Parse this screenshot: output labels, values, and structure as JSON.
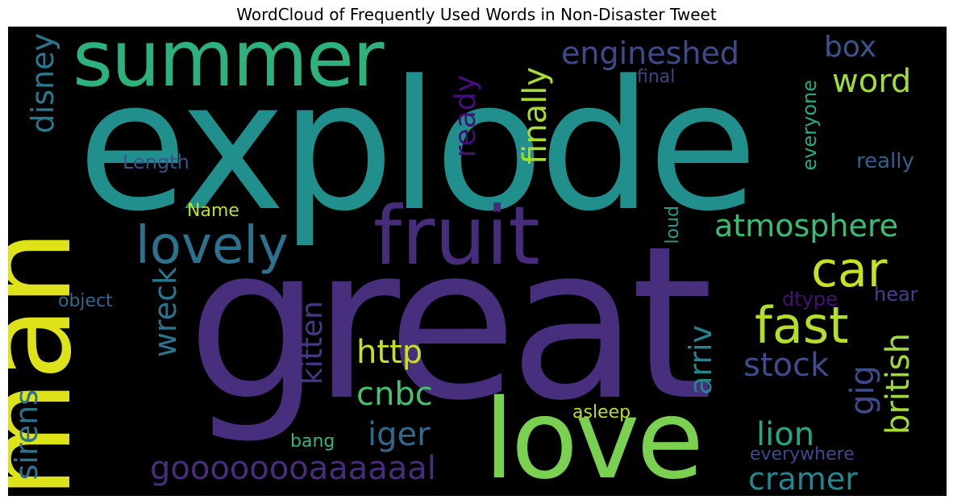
{
  "title": "WordCloud of Frequently Used Words in Non-Disaster Tweet",
  "words": {
    "explode": {
      "text": "explode",
      "color": "#21908d"
    },
    "great": {
      "text": "great",
      "color": "#472f7d"
    },
    "man": {
      "text": "man",
      "color": "#dde318"
    },
    "love": {
      "text": "love",
      "color": "#7ad151"
    },
    "summer": {
      "text": "summer",
      "color": "#2db27d"
    },
    "fruit": {
      "text": "fruit",
      "color": "#472c7a"
    },
    "lovely": {
      "text": "lovely",
      "color": "#2c728e"
    },
    "car": {
      "text": "car",
      "color": "#c8e020"
    },
    "fast": {
      "text": "fast",
      "color": "#b5de2b"
    },
    "atmosphere": {
      "text": "atmosphere",
      "color": "#3bbb75"
    },
    "engineshed": {
      "text": "engineshed",
      "color": "#3e4a89"
    },
    "box": {
      "text": "box",
      "color": "#3b528b"
    },
    "word": {
      "text": "word",
      "color": "#a2da37"
    },
    "disney": {
      "text": "disney",
      "color": "#2a788e"
    },
    "final": {
      "text": "final",
      "color": "#414487"
    },
    "ready": {
      "text": "ready",
      "color": "#440f76"
    },
    "finally": {
      "text": "finally",
      "color": "#a8db34"
    },
    "everyone": {
      "text": "everyone",
      "color": "#25ab82"
    },
    "really": {
      "text": "really",
      "color": "#355f8d"
    },
    "length": {
      "text": "Length",
      "color": "#3b528b"
    },
    "name": {
      "text": "Name",
      "color": "#bddf26"
    },
    "loud": {
      "text": "loud",
      "color": "#2a9a8b"
    },
    "object": {
      "text": "object",
      "color": "#31688e"
    },
    "wreck": {
      "text": "wreck",
      "color": "#2b758e"
    },
    "kitten": {
      "text": "kitten",
      "color": "#443a83"
    },
    "http": {
      "text": "http",
      "color": "#c5e021"
    },
    "cnbc": {
      "text": "cnbc",
      "color": "#48c16e"
    },
    "arriv": {
      "text": "arriv",
      "color": "#25858e"
    },
    "stock": {
      "text": "stock",
      "color": "#3e4c8a"
    },
    "gig": {
      "text": "gig",
      "color": "#3e4a89"
    },
    "british": {
      "text": "british",
      "color": "#a0da39"
    },
    "dtype": {
      "text": "dtype",
      "color": "#440f76"
    },
    "hear": {
      "text": "hear",
      "color": "#424186"
    },
    "sirens": {
      "text": "sirens",
      "color": "#2c738e"
    },
    "iger": {
      "text": "iger",
      "color": "#31688e"
    },
    "asleep": {
      "text": "asleep",
      "color": "#b8de29"
    },
    "bang": {
      "text": "bang",
      "color": "#35b779"
    },
    "lion": {
      "text": "lion",
      "color": "#22a884"
    },
    "everywhere": {
      "text": "everywhere",
      "color": "#3e4989"
    },
    "goooooooaaaaaal": {
      "text": "goooooooaaaaaal",
      "color": "#472d7b"
    },
    "cramer": {
      "text": "cramer",
      "color": "#24868e"
    }
  }
}
